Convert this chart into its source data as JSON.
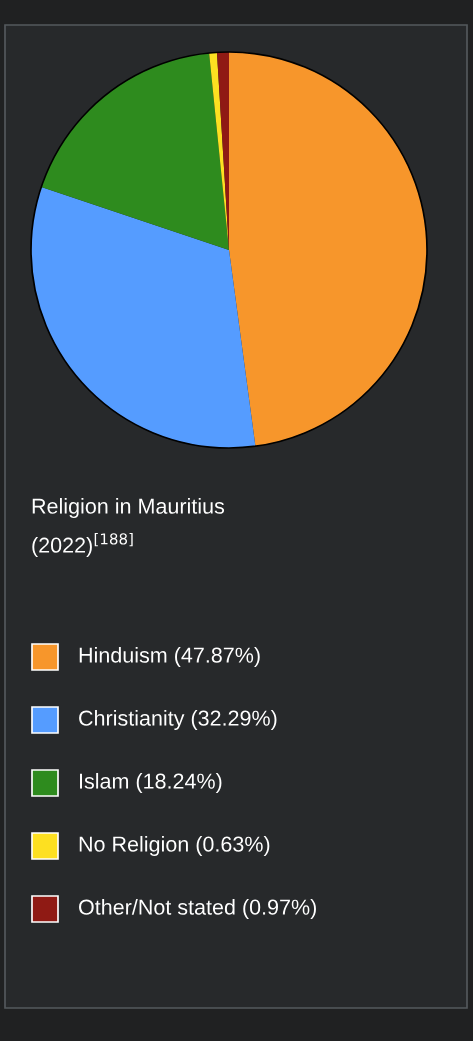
{
  "chart_data": {
    "type": "pie",
    "title": "Religion in Mauritius (2022)$^{[188]}$",
    "categories": [
      "Hinduism",
      "Christianity",
      "Islam",
      "No Religion",
      "Other/Not stated"
    ],
    "values": [
      47.87,
      32.29,
      18.24,
      0.63,
      0.97
    ],
    "value_labels": [
      "(47.87%)",
      "(32.29%)",
      "(18.24%)",
      "(0.63%)",
      "(0.97%)"
    ],
    "colors": [
      "#f7962b",
      "#559cff",
      "#2e8b1e",
      "#fde021",
      "#8f1a14"
    ],
    "legend": "bottom"
  }
}
